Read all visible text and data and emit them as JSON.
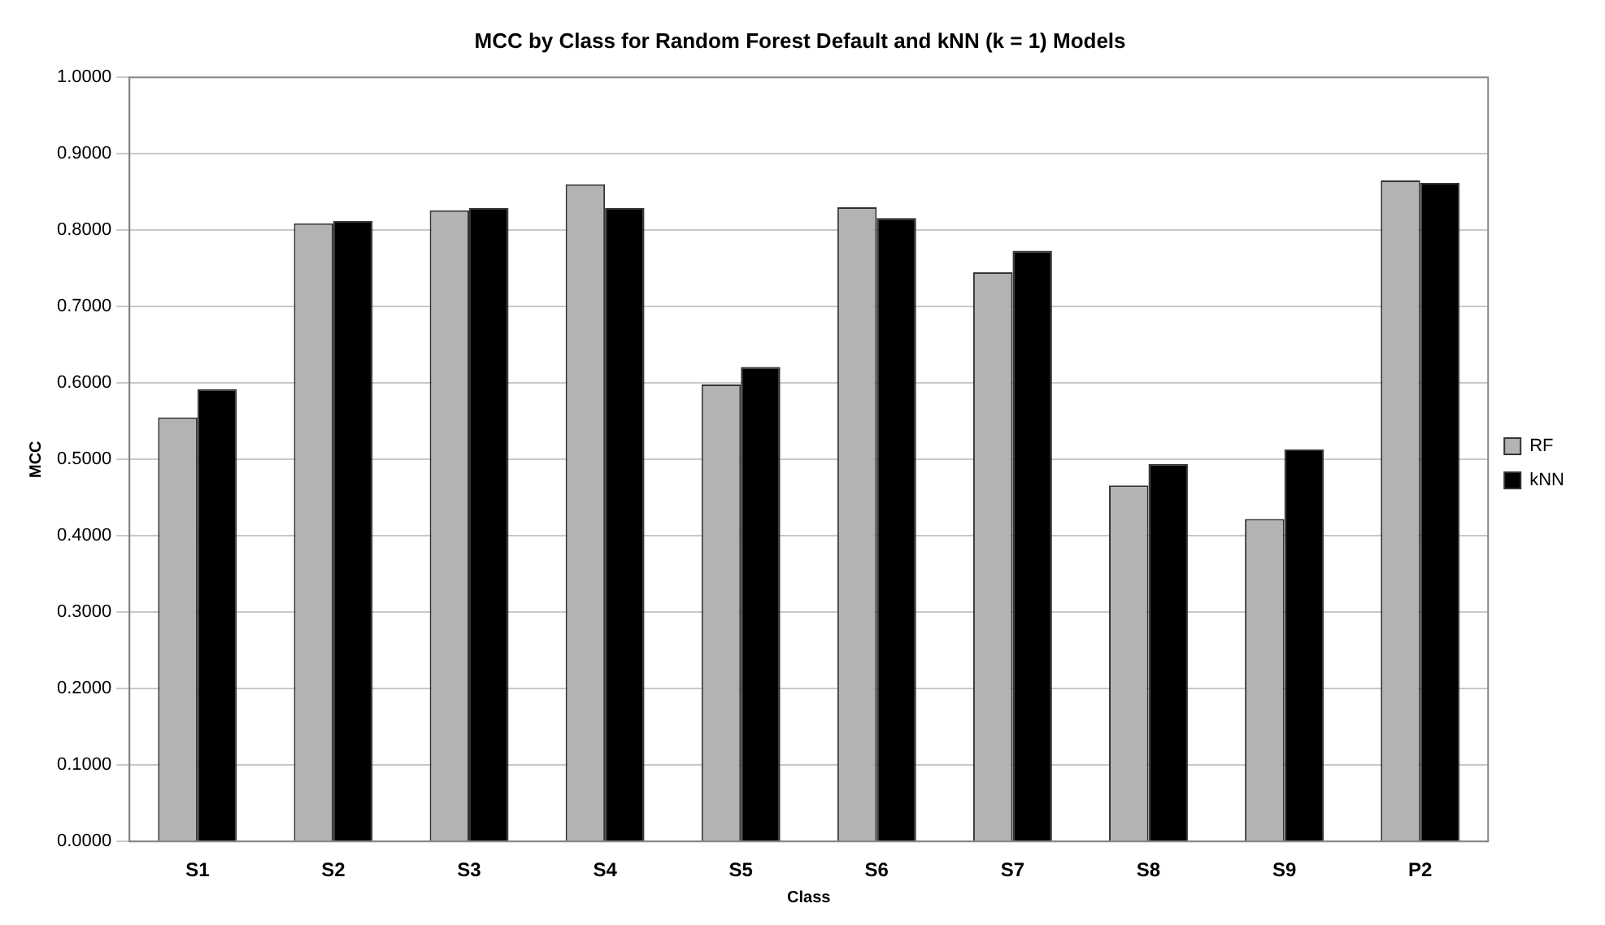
{
  "chart_data": {
    "type": "bar",
    "title": "MCC by Class for Random Forest Default and kNN (k = 1) Models",
    "xlabel": "Class",
    "ylabel": "MCC",
    "categories": [
      "S1",
      "S2",
      "S3",
      "S4",
      "S5",
      "S6",
      "S7",
      "S8",
      "S9",
      "P2"
    ],
    "series": [
      {
        "name": "RF",
        "color": "#b3b3b3",
        "values": [
          0.555,
          0.809,
          0.826,
          0.86,
          0.598,
          0.83,
          0.745,
          0.466,
          0.422,
          0.865
        ]
      },
      {
        "name": "kNN",
        "color": "#000000",
        "values": [
          0.592,
          0.812,
          0.829,
          0.829,
          0.621,
          0.816,
          0.773,
          0.494,
          0.513,
          0.862
        ]
      }
    ],
    "ylim": [
      0,
      1
    ],
    "yticks": [
      {
        "value": 0,
        "label": "0.0000"
      },
      {
        "value": 0.1,
        "label": "0.1000"
      },
      {
        "value": 0.2,
        "label": "0.2000"
      },
      {
        "value": 0.3,
        "label": "0.3000"
      },
      {
        "value": 0.4,
        "label": "0.4000"
      },
      {
        "value": 0.5,
        "label": "0.5000"
      },
      {
        "value": 0.6,
        "label": "0.6000"
      },
      {
        "value": 0.7,
        "label": "0.7000"
      },
      {
        "value": 0.8,
        "label": "0.8000"
      },
      {
        "value": 0.9,
        "label": "0.9000"
      },
      {
        "value": 1,
        "label": "1.0000"
      }
    ],
    "grid": "y",
    "legend": "right"
  }
}
